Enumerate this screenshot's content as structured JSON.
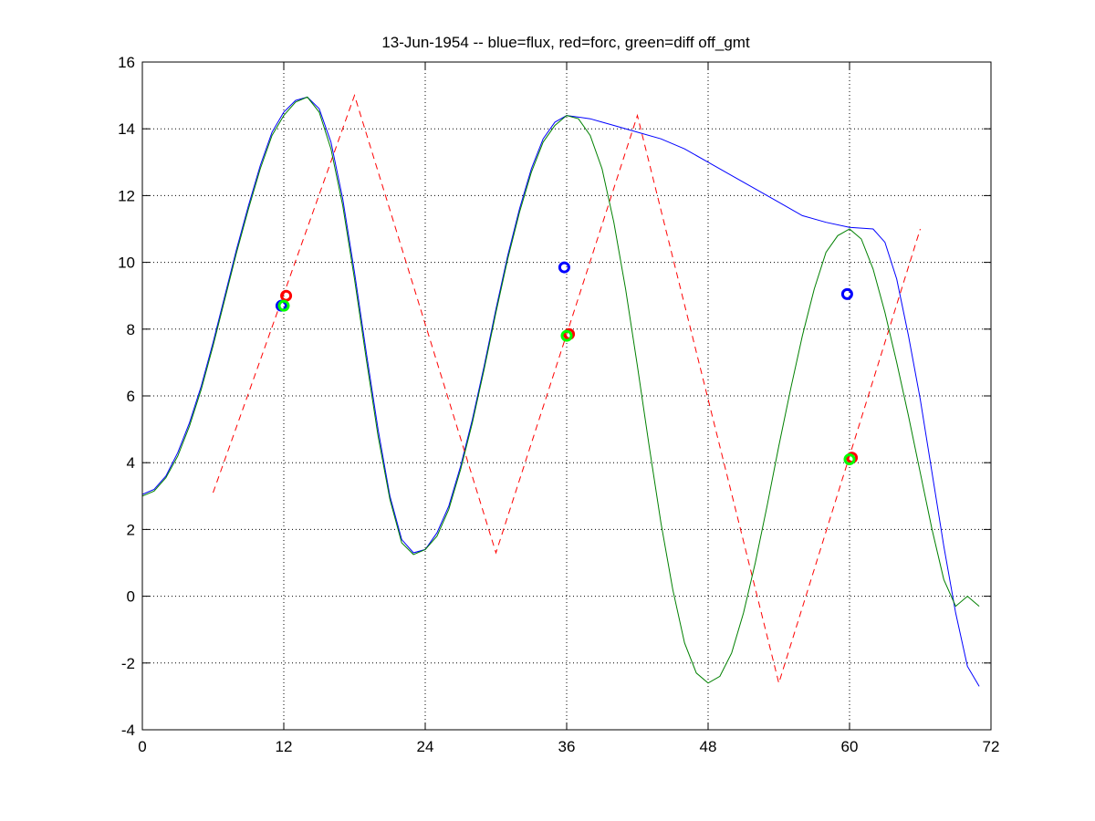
{
  "chart_data": {
    "type": "line",
    "title": "13-Jun-1954 -- blue=flux, red=forc, green=diff off_gmt",
    "xlabel": "",
    "ylabel": "",
    "xlim": [
      0,
      72
    ],
    "ylim": [
      -4,
      16
    ],
    "xticks": [
      0,
      12,
      24,
      36,
      48,
      60,
      72
    ],
    "yticks": [
      -4,
      -2,
      0,
      2,
      4,
      6,
      8,
      10,
      12,
      14,
      16
    ],
    "x_tick_labels": [
      "0",
      "12",
      "24",
      "36",
      "48",
      "60",
      "72"
    ],
    "y_tick_labels": [
      "-4",
      "-2",
      "0",
      "2",
      "4",
      "6",
      "8",
      "10",
      "12",
      "14",
      "16"
    ],
    "grid": true,
    "series": [
      {
        "name": "flux",
        "color": "#0000ff",
        "style": "solid",
        "x": [
          0,
          1,
          2,
          3,
          4,
          5,
          6,
          7,
          8,
          9,
          10,
          11,
          12,
          13,
          14,
          15,
          16,
          17,
          18,
          19,
          20,
          21,
          22,
          23,
          24,
          25,
          26,
          27,
          28,
          29,
          30,
          31,
          32,
          33,
          34,
          35,
          36,
          37,
          38,
          39,
          40,
          42,
          44,
          46,
          48,
          50,
          52,
          54,
          56,
          58,
          60,
          62,
          63,
          64,
          65,
          66,
          67,
          68,
          69,
          70,
          71
        ],
        "y": [
          3.05,
          3.2,
          3.6,
          4.3,
          5.2,
          6.3,
          7.6,
          9.0,
          10.4,
          11.7,
          12.9,
          13.9,
          14.5,
          14.85,
          14.95,
          14.6,
          13.6,
          11.9,
          9.7,
          7.3,
          5.0,
          3.0,
          1.7,
          1.3,
          1.4,
          1.9,
          2.7,
          3.9,
          5.3,
          6.9,
          8.6,
          10.2,
          11.6,
          12.8,
          13.7,
          14.2,
          14.4,
          14.35,
          14.3,
          14.2,
          14.1,
          13.9,
          13.7,
          13.4,
          13.0,
          12.6,
          12.2,
          11.8,
          11.4,
          11.2,
          11.05,
          11.0,
          10.6,
          9.5,
          7.8,
          5.9,
          3.7,
          1.5,
          -0.5,
          -2.1,
          -2.7
        ]
      },
      {
        "name": "forc",
        "color": "#ff0000",
        "style": "dashed",
        "x": [
          6,
          18,
          30,
          42,
          54,
          66
        ],
        "y": [
          3.1,
          15.0,
          1.3,
          14.4,
          -2.6,
          11.0
        ]
      },
      {
        "name": "diff",
        "color": "#008000",
        "style": "solid",
        "x": [
          0,
          1,
          2,
          3,
          4,
          5,
          6,
          7,
          8,
          9,
          10,
          11,
          12,
          13,
          14,
          15,
          16,
          17,
          18,
          19,
          20,
          21,
          22,
          23,
          24,
          25,
          26,
          27,
          28,
          29,
          30,
          31,
          32,
          33,
          34,
          35,
          36,
          37,
          38,
          39,
          40,
          41,
          42,
          43,
          44,
          45,
          46,
          47,
          48,
          49,
          50,
          51,
          52,
          53,
          54,
          55,
          56,
          57,
          58,
          59,
          60,
          61,
          62,
          63,
          64,
          65,
          66,
          67,
          68,
          69,
          70,
          71
        ],
        "y": [
          3.0,
          3.15,
          3.55,
          4.2,
          5.1,
          6.2,
          7.5,
          8.9,
          10.3,
          11.6,
          12.8,
          13.8,
          14.4,
          14.8,
          14.95,
          14.5,
          13.4,
          11.7,
          9.5,
          7.1,
          4.8,
          2.9,
          1.6,
          1.25,
          1.4,
          1.8,
          2.6,
          3.8,
          5.2,
          6.8,
          8.5,
          10.1,
          11.5,
          12.7,
          13.6,
          14.1,
          14.4,
          14.3,
          13.8,
          12.8,
          11.2,
          9.2,
          6.9,
          4.5,
          2.2,
          0.2,
          -1.4,
          -2.3,
          -2.6,
          -2.4,
          -1.7,
          -0.5,
          1.0,
          2.7,
          4.5,
          6.2,
          7.8,
          9.2,
          10.3,
          10.8,
          11.0,
          10.7,
          9.8,
          8.5,
          7.0,
          5.4,
          3.7,
          2.0,
          0.5,
          -0.3,
          0.0,
          -0.3
        ]
      }
    ],
    "markers": [
      {
        "series": "flux",
        "color": "#0000ff",
        "points": [
          [
            11.8,
            8.7
          ],
          [
            35.8,
            9.85
          ],
          [
            59.8,
            9.05
          ]
        ]
      },
      {
        "series": "forc",
        "color": "#ff0000",
        "points": [
          [
            12.2,
            9.0
          ],
          [
            36.2,
            7.85
          ],
          [
            60.2,
            4.15
          ]
        ]
      },
      {
        "series": "diff",
        "color": "#00ff00",
        "points": [
          [
            12.0,
            8.7
          ],
          [
            36.0,
            7.8
          ],
          [
            60.0,
            4.1
          ]
        ]
      }
    ]
  }
}
